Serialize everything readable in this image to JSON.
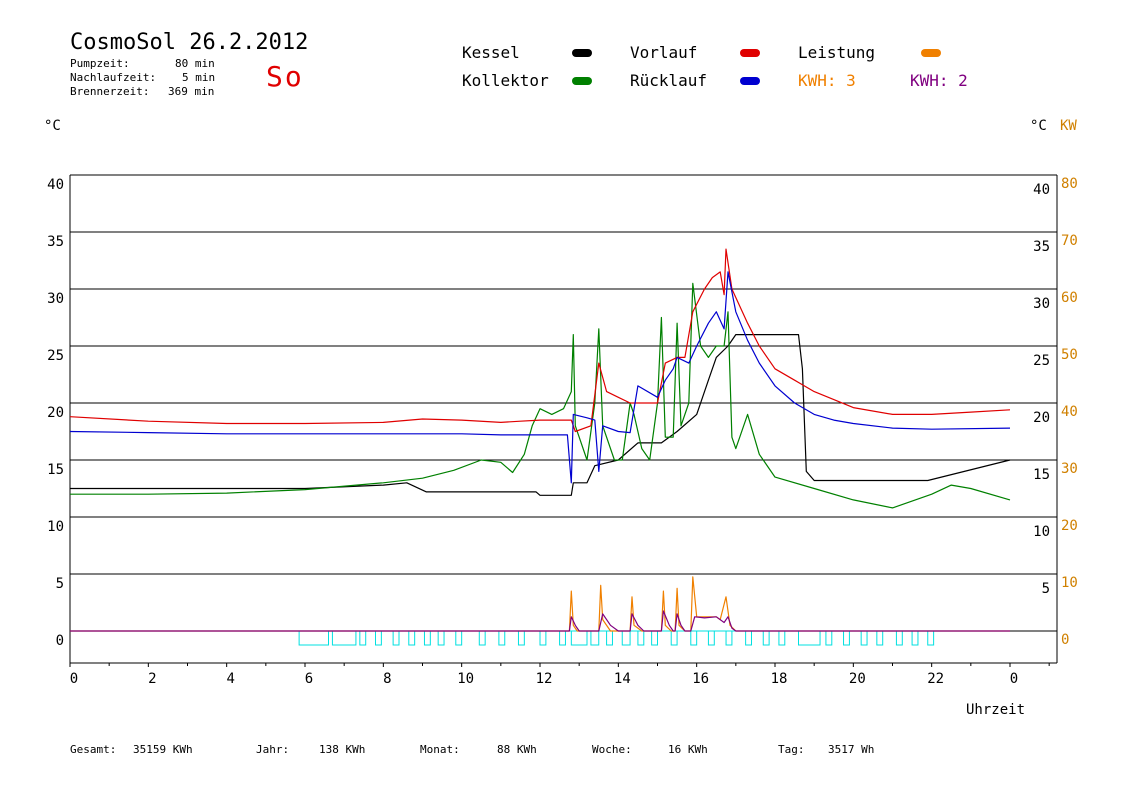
{
  "header": {
    "title": "CosmoSol 26.2.2012",
    "day": "So",
    "pumpzeit_label": "Pumpzeit:",
    "pumpzeit_value": "80 min",
    "nachlauf_label": "Nachlaufzeit:",
    "nachlauf_value": "5 min",
    "brenner_label": "Brennerzeit:",
    "brenner_value": "369 min"
  },
  "legend": {
    "kessel": "Kessel",
    "kollektor": "Kollektor",
    "vorlauf": "Vorlauf",
    "ruecklauf": "Rücklauf",
    "leistung": "Leistung",
    "kwh1": "KWH: 3",
    "kwh2": "KWH: 2"
  },
  "colors": {
    "kessel": "#000000",
    "kollektor": "#008000",
    "vorlauf": "#e00000",
    "ruecklauf": "#0000d0",
    "leistung": "#f08000",
    "kwh2": "#800080",
    "pump": "#00e0e0"
  },
  "axis_units": {
    "left": "°C",
    "right_c": "°C",
    "right_kw": "KW"
  },
  "xlabel": "Uhrzeit",
  "footer": {
    "gesamt_label": "Gesamt:",
    "gesamt_value": "35159 KWh",
    "jahr_label": "Jahr:",
    "jahr_value": "138 KWh",
    "monat_label": "Monat:",
    "monat_value": "88 KWh",
    "woche_label": "Woche:",
    "woche_value": "16 KWh",
    "tag_label": "Tag:",
    "tag_value": "3517 Wh"
  },
  "chart_data": {
    "type": "line",
    "xlabel": "Uhrzeit",
    "x_ticks": [
      "0",
      "2",
      "4",
      "6",
      "8",
      "10",
      "12",
      "14",
      "16",
      "18",
      "20",
      "22",
      "0"
    ],
    "y_left_ticks": [
      "40",
      "35",
      "30",
      "25",
      "20",
      "15",
      "10",
      "5",
      "0"
    ],
    "y_right_c_ticks": [
      "40",
      "35",
      "30",
      "25",
      "20",
      "15",
      "10",
      "5"
    ],
    "y_right_kw_ticks": [
      "80",
      "70",
      "60",
      "50",
      "40",
      "30",
      "20",
      "10",
      "0"
    ],
    "ylim_c": [
      0,
      40
    ],
    "ylim_kw": [
      0,
      80
    ],
    "xlim_h": [
      0,
      24
    ],
    "grid": true,
    "series": [
      {
        "name": "Kessel",
        "color": "#000000",
        "points": [
          [
            0,
            12.5
          ],
          [
            6,
            12.5
          ],
          [
            8,
            12.8
          ],
          [
            8.6,
            13
          ],
          [
            9.1,
            12.2
          ],
          [
            11.9,
            12.2
          ],
          [
            12,
            11.9
          ],
          [
            12.8,
            11.9
          ],
          [
            12.85,
            13
          ],
          [
            13.2,
            13
          ],
          [
            13.4,
            14.5
          ],
          [
            14,
            15
          ],
          [
            14.5,
            16.5
          ],
          [
            15.1,
            16.5
          ],
          [
            15.5,
            17.5
          ],
          [
            16,
            19
          ],
          [
            16.3,
            22
          ],
          [
            16.5,
            24
          ],
          [
            16.8,
            25
          ],
          [
            17,
            26
          ],
          [
            18.6,
            26
          ],
          [
            18.7,
            23
          ],
          [
            18.8,
            14
          ],
          [
            19,
            13.2
          ],
          [
            21.9,
            13.2
          ],
          [
            24,
            15
          ]
        ]
      },
      {
        "name": "Kollektor",
        "color": "#008000",
        "points": [
          [
            0,
            12
          ],
          [
            2,
            12
          ],
          [
            4,
            12.1
          ],
          [
            6,
            12.4
          ],
          [
            8,
            13
          ],
          [
            9,
            13.4
          ],
          [
            9.8,
            14.1
          ],
          [
            10.5,
            15
          ],
          [
            11,
            14.8
          ],
          [
            11.3,
            13.9
          ],
          [
            11.6,
            15.5
          ],
          [
            11.8,
            18
          ],
          [
            12,
            19.5
          ],
          [
            12.3,
            19
          ],
          [
            12.6,
            19.5
          ],
          [
            12.8,
            21
          ],
          [
            12.85,
            26
          ],
          [
            12.9,
            18
          ],
          [
            13.2,
            15
          ],
          [
            13.4,
            20
          ],
          [
            13.5,
            26.5
          ],
          [
            13.6,
            18
          ],
          [
            13.9,
            15
          ],
          [
            14.1,
            15
          ],
          [
            14.3,
            20
          ],
          [
            14.4,
            19
          ],
          [
            14.6,
            16
          ],
          [
            14.8,
            15
          ],
          [
            15,
            20
          ],
          [
            15.1,
            27.5
          ],
          [
            15.2,
            17
          ],
          [
            15.4,
            17
          ],
          [
            15.5,
            27
          ],
          [
            15.6,
            18
          ],
          [
            15.8,
            20
          ],
          [
            15.9,
            30.5
          ],
          [
            16.1,
            25
          ],
          [
            16.3,
            24
          ],
          [
            16.5,
            25
          ],
          [
            16.7,
            25
          ],
          [
            16.8,
            28
          ],
          [
            16.9,
            17
          ],
          [
            17,
            16
          ],
          [
            17.3,
            19
          ],
          [
            17.6,
            15.5
          ],
          [
            18,
            13.5
          ],
          [
            19,
            12.5
          ],
          [
            20,
            11.5
          ],
          [
            21,
            10.8
          ],
          [
            22,
            12
          ],
          [
            22.5,
            12.8
          ],
          [
            23,
            12.5
          ],
          [
            24,
            11.5
          ]
        ]
      },
      {
        "name": "Vorlauf",
        "color": "#e00000",
        "points": [
          [
            0,
            18.8
          ],
          [
            2,
            18.4
          ],
          [
            4,
            18.2
          ],
          [
            6,
            18.2
          ],
          [
            8,
            18.3
          ],
          [
            9,
            18.6
          ],
          [
            10,
            18.5
          ],
          [
            11,
            18.3
          ],
          [
            11.5,
            18.4
          ],
          [
            12,
            18.5
          ],
          [
            12.8,
            18.5
          ],
          [
            12.9,
            17.5
          ],
          [
            13.3,
            18
          ],
          [
            13.5,
            23.5
          ],
          [
            13.7,
            21
          ],
          [
            14,
            20.5
          ],
          [
            14.3,
            20
          ],
          [
            14.5,
            20
          ],
          [
            15,
            20
          ],
          [
            15.2,
            23.5
          ],
          [
            15.5,
            24
          ],
          [
            15.7,
            24
          ],
          [
            15.9,
            28
          ],
          [
            16.2,
            30
          ],
          [
            16.4,
            31
          ],
          [
            16.6,
            31.5
          ],
          [
            16.7,
            29.5
          ],
          [
            16.75,
            33.5
          ],
          [
            16.9,
            30
          ],
          [
            17.3,
            27
          ],
          [
            17.6,
            25
          ],
          [
            18,
            23
          ],
          [
            18.5,
            22
          ],
          [
            19,
            21
          ],
          [
            19.5,
            20.3
          ],
          [
            20,
            19.6
          ],
          [
            21,
            19
          ],
          [
            22,
            19
          ],
          [
            23,
            19.2
          ],
          [
            24,
            19.4
          ]
        ]
      },
      {
        "name": "Rücklauf",
        "color": "#0000d0",
        "points": [
          [
            0,
            17.5
          ],
          [
            2,
            17.4
          ],
          [
            4,
            17.3
          ],
          [
            6,
            17.3
          ],
          [
            8,
            17.3
          ],
          [
            10,
            17.3
          ],
          [
            11,
            17.2
          ],
          [
            12,
            17.2
          ],
          [
            12.7,
            17.2
          ],
          [
            12.8,
            13
          ],
          [
            12.85,
            19
          ],
          [
            13.2,
            18.7
          ],
          [
            13.4,
            18.5
          ],
          [
            13.5,
            14
          ],
          [
            13.6,
            18
          ],
          [
            14,
            17.5
          ],
          [
            14.3,
            17.4
          ],
          [
            14.5,
            21.5
          ],
          [
            15,
            20.5
          ],
          [
            15.2,
            22
          ],
          [
            15.4,
            23
          ],
          [
            15.5,
            24
          ],
          [
            15.8,
            23.5
          ],
          [
            16,
            25
          ],
          [
            16.3,
            27
          ],
          [
            16.5,
            28
          ],
          [
            16.7,
            26.5
          ],
          [
            16.8,
            31.5
          ],
          [
            17,
            28
          ],
          [
            17.3,
            25.5
          ],
          [
            17.6,
            23.5
          ],
          [
            18,
            21.5
          ],
          [
            18.5,
            20
          ],
          [
            19,
            19
          ],
          [
            19.5,
            18.5
          ],
          [
            20,
            18.2
          ],
          [
            21,
            17.8
          ],
          [
            22,
            17.7
          ],
          [
            24,
            17.8
          ]
        ]
      },
      {
        "name": "Leistung",
        "color": "#f08000",
        "points": [
          [
            0,
            0
          ],
          [
            12.75,
            0
          ],
          [
            12.8,
            7
          ],
          [
            12.85,
            1
          ],
          [
            12.95,
            0
          ],
          [
            13.5,
            0
          ],
          [
            13.55,
            8
          ],
          [
            13.6,
            2
          ],
          [
            13.8,
            0
          ],
          [
            14.3,
            0
          ],
          [
            14.35,
            6
          ],
          [
            14.4,
            1
          ],
          [
            14.6,
            0
          ],
          [
            15.1,
            0
          ],
          [
            15.15,
            7
          ],
          [
            15.2,
            1
          ],
          [
            15.35,
            0
          ],
          [
            15.45,
            0
          ],
          [
            15.5,
            7.5
          ],
          [
            15.55,
            1
          ],
          [
            15.7,
            0
          ],
          [
            15.85,
            0
          ],
          [
            15.9,
            9.5
          ],
          [
            16,
            2.5
          ],
          [
            16.2,
            2.5
          ],
          [
            16.5,
            2.5
          ],
          [
            16.6,
            2
          ],
          [
            16.75,
            6
          ],
          [
            16.85,
            1
          ],
          [
            17,
            0
          ],
          [
            24,
            0
          ]
        ]
      },
      {
        "name": "KWH",
        "color": "#800080",
        "points": [
          [
            0,
            0
          ],
          [
            12.75,
            0
          ],
          [
            12.8,
            2.5
          ],
          [
            12.9,
            1
          ],
          [
            13,
            0
          ],
          [
            13.5,
            0
          ],
          [
            13.6,
            3
          ],
          [
            13.8,
            1
          ],
          [
            14,
            0
          ],
          [
            14.3,
            0
          ],
          [
            14.35,
            3
          ],
          [
            14.5,
            1
          ],
          [
            14.65,
            0
          ],
          [
            15.1,
            0
          ],
          [
            15.15,
            3.5
          ],
          [
            15.3,
            1
          ],
          [
            15.4,
            0
          ],
          [
            15.45,
            0
          ],
          [
            15.5,
            3
          ],
          [
            15.6,
            1
          ],
          [
            15.7,
            0
          ],
          [
            15.85,
            0
          ],
          [
            15.95,
            2.5
          ],
          [
            16.2,
            2.3
          ],
          [
            16.5,
            2.5
          ],
          [
            16.7,
            1.5
          ],
          [
            16.8,
            2.5
          ],
          [
            16.9,
            0.5
          ],
          [
            17,
            0
          ],
          [
            24,
            0
          ]
        ]
      }
    ],
    "pump_on_intervals": [
      [
        5.85,
        6.6
      ],
      [
        6.7,
        7.3
      ],
      [
        7.4,
        7.55
      ],
      [
        7.8,
        7.95
      ],
      [
        8.25,
        8.4
      ],
      [
        8.65,
        8.8
      ],
      [
        9.05,
        9.2
      ],
      [
        9.4,
        9.55
      ],
      [
        9.85,
        10
      ],
      [
        10.45,
        10.6
      ],
      [
        10.95,
        11.1
      ],
      [
        11.45,
        11.6
      ],
      [
        12,
        12.15
      ],
      [
        12.5,
        12.65
      ],
      [
        12.8,
        13.2
      ],
      [
        13.3,
        13.5
      ],
      [
        13.7,
        13.85
      ],
      [
        14.1,
        14.3
      ],
      [
        14.5,
        14.65
      ],
      [
        14.85,
        15
      ],
      [
        15.35,
        15.5
      ],
      [
        15.85,
        16
      ],
      [
        16.3,
        16.45
      ],
      [
        16.75,
        16.9
      ],
      [
        17.25,
        17.4
      ],
      [
        17.7,
        17.85
      ],
      [
        18.1,
        18.25
      ],
      [
        18.6,
        19.15
      ],
      [
        19.3,
        19.45
      ],
      [
        19.75,
        19.9
      ],
      [
        20.2,
        20.35
      ],
      [
        20.6,
        20.75
      ],
      [
        21.1,
        21.25
      ],
      [
        21.5,
        21.65
      ],
      [
        21.9,
        22.05
      ]
    ]
  }
}
